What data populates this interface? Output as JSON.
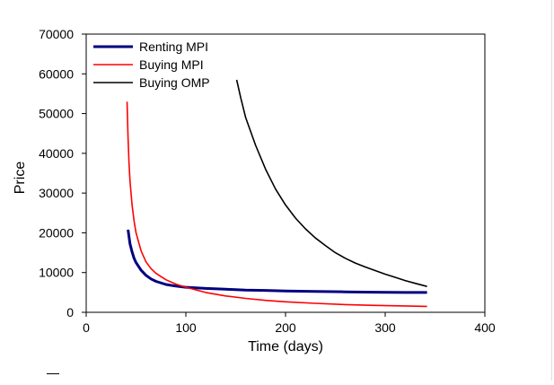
{
  "chart_data": {
    "type": "line",
    "title": "",
    "xlabel": "Time (days)",
    "ylabel": "Price",
    "xlim": [
      0,
      400
    ],
    "ylim": [
      0,
      70000
    ],
    "xticks": [
      "0",
      "100",
      "200",
      "300",
      "400"
    ],
    "yticks": [
      "0",
      "10000",
      "20000",
      "30000",
      "40000",
      "50000",
      "60000",
      "70000"
    ],
    "grid": false,
    "legend_position": "top-left",
    "series": [
      {
        "name": "Renting MPI",
        "color": "#000080",
        "x": [
          42,
          44,
          46,
          48,
          50,
          55,
          60,
          65,
          70,
          80,
          90,
          100,
          120,
          140,
          160,
          180,
          200,
          230,
          260,
          290,
          320,
          342
        ],
        "y": [
          20800,
          17200,
          15200,
          13600,
          12500,
          10600,
          9300,
          8400,
          7800,
          7000,
          6600,
          6300,
          6000,
          5800,
          5600,
          5500,
          5350,
          5250,
          5150,
          5050,
          5000,
          5000
        ]
      },
      {
        "name": "Buying MPI",
        "color": "#ff0000",
        "x": [
          41,
          42,
          43,
          44,
          46,
          48,
          50,
          55,
          60,
          65,
          70,
          80,
          90,
          100,
          120,
          140,
          160,
          180,
          200,
          230,
          260,
          290,
          320,
          342
        ],
        "y": [
          53000,
          44000,
          37500,
          33000,
          27000,
          23000,
          20000,
          15500,
          12700,
          11000,
          9800,
          8200,
          7100,
          6300,
          5000,
          4100,
          3500,
          3000,
          2650,
          2250,
          1950,
          1750,
          1600,
          1500
        ]
      },
      {
        "name": "Buying OMP",
        "color": "#000000",
        "x": [
          151,
          155,
          160,
          170,
          180,
          190,
          200,
          210,
          220,
          230,
          240,
          250,
          260,
          270,
          280,
          290,
          300,
          310,
          320,
          330,
          342
        ],
        "y": [
          58500,
          54000,
          49000,
          42000,
          36000,
          31000,
          27000,
          23700,
          21000,
          18700,
          16800,
          15000,
          13600,
          12400,
          11400,
          10500,
          9600,
          8800,
          8000,
          7300,
          6500
        ]
      }
    ]
  }
}
